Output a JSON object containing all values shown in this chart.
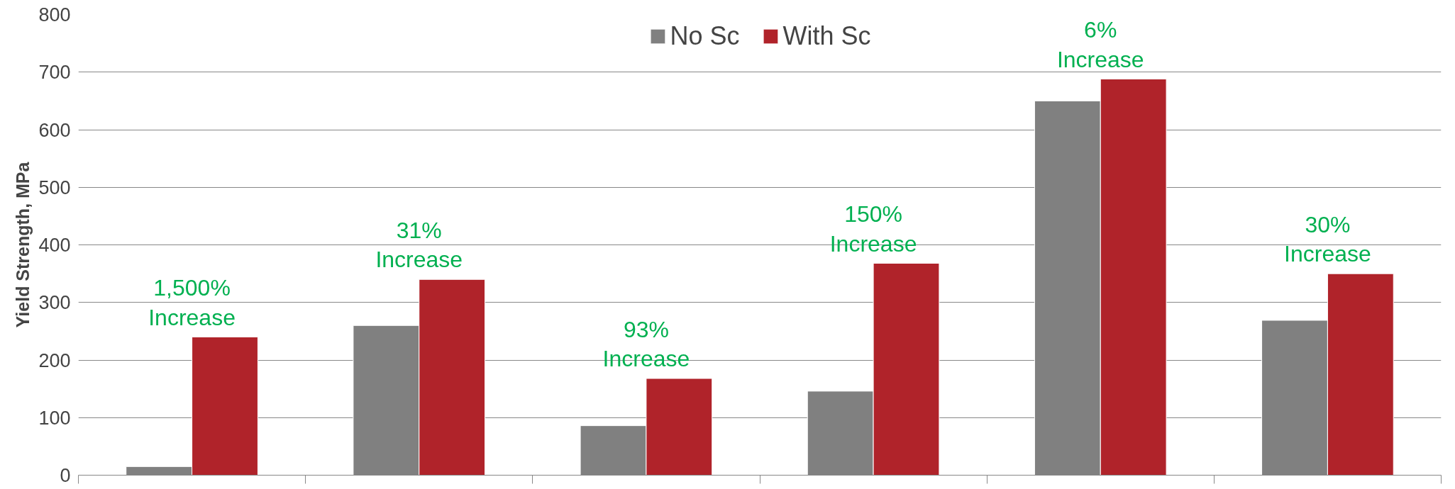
{
  "chart_data": {
    "type": "bar",
    "ylabel": "Yield Strength, MPa",
    "categories": [
      null,
      null,
      null,
      null,
      null,
      null
    ],
    "series": [
      {
        "name": "No Sc",
        "color": "#808080",
        "values": [
          15,
          260,
          86,
          146,
          650,
          269
        ]
      },
      {
        "name": "With Sc",
        "color": "#b0232a",
        "values": [
          240,
          340,
          168,
          368,
          688,
          350
        ]
      }
    ],
    "ylim": [
      0,
      800
    ],
    "yticks": [
      0,
      100,
      200,
      300,
      400,
      500,
      600,
      700,
      800
    ],
    "grid": "y",
    "legend": "top",
    "annotations": [
      "1,500%\nIncrease",
      "31%\nIncrease",
      "93%\nIncrease",
      "150%\nIncrease",
      "6%\nIncrease",
      "30%\nIncrease"
    ]
  }
}
